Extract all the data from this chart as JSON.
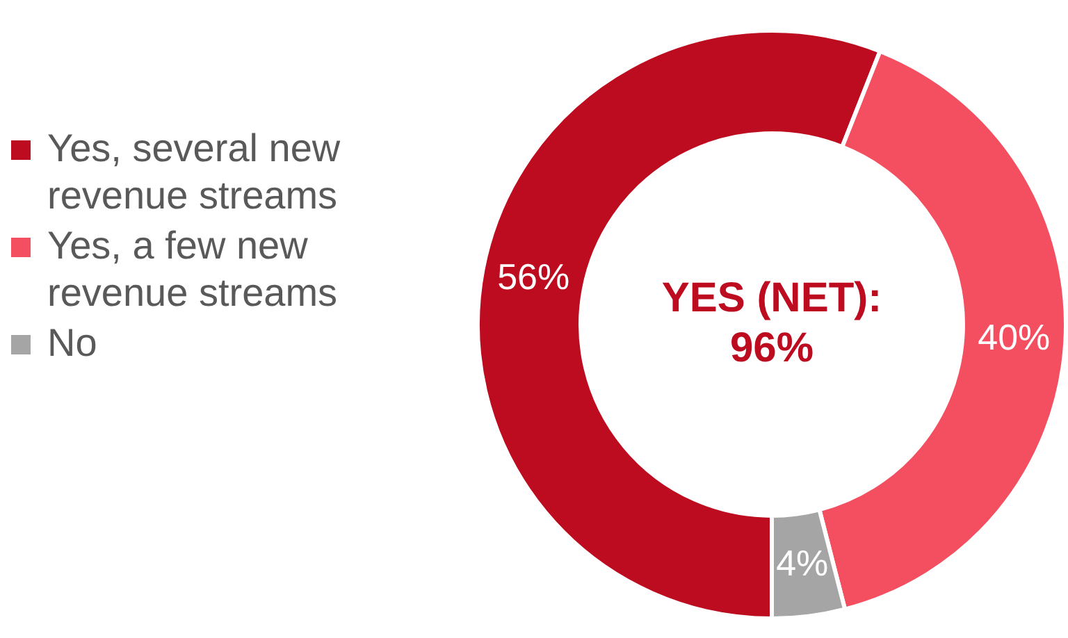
{
  "chart_data": {
    "type": "donut",
    "categories": [
      "Yes, several new revenue streams",
      "Yes, a few new revenue streams",
      "No"
    ],
    "values": [
      56,
      40,
      4
    ],
    "colors": [
      "#bd0b1f",
      "#f44f60",
      "#a5a5a5"
    ],
    "value_labels": [
      "56%",
      "40%",
      "4%"
    ],
    "legend": "left",
    "annotations": [
      "YES (NET): 96%"
    ]
  }
}
